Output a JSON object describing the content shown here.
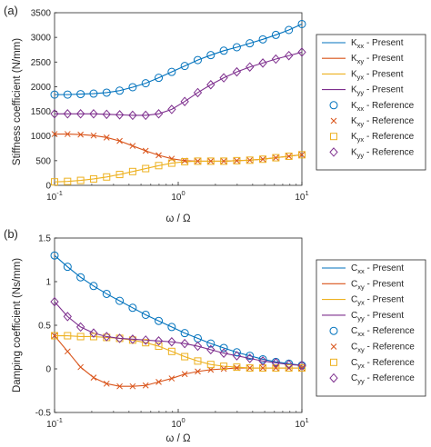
{
  "chart_data": [
    {
      "panel_label": "(a)",
      "type": "line",
      "xscale": "log",
      "xlim": [
        0.1,
        10
      ],
      "ylim": [
        0,
        3500
      ],
      "xlabel": "ω / Ω",
      "ylabel": "Stiffness coefficient (N/mm)",
      "yticks": [
        "0",
        "500",
        "1000",
        "1500",
        "2000",
        "2500",
        "3000",
        "3500"
      ],
      "xticks": [
        {
          "base": "10",
          "exp": "-1"
        },
        {
          "base": "10",
          "exp": "0"
        },
        {
          "base": "10",
          "exp": "1"
        }
      ],
      "legend_position": "right",
      "x": [
        0.1,
        0.1274,
        0.1624,
        0.2069,
        0.2637,
        0.336,
        0.4281,
        0.5456,
        0.6952,
        0.8859,
        1.1288,
        1.4384,
        1.833,
        2.3357,
        2.9764,
        3.7927,
        4.8329,
        6.1585,
        7.8476,
        10.0
      ],
      "series": [
        {
          "name": "Kxx",
          "sym": "K",
          "sub": "xx",
          "color": "#0072BD",
          "marker": "circle",
          "values": [
            1840,
            1840,
            1850,
            1860,
            1880,
            1920,
            1990,
            2070,
            2180,
            2300,
            2420,
            2540,
            2640,
            2730,
            2800,
            2880,
            2960,
            3050,
            3150,
            3270
          ]
        },
        {
          "name": "Kxy",
          "sym": "K",
          "sub": "xy",
          "color": "#D95319",
          "marker": "x",
          "values": [
            1040,
            1040,
            1030,
            1010,
            970,
            900,
            800,
            700,
            610,
            540,
            500,
            490,
            490,
            490,
            500,
            510,
            530,
            560,
            590,
            620
          ]
        },
        {
          "name": "Kyx",
          "sym": "K",
          "sub": "yx",
          "color": "#EDB120",
          "marker": "square",
          "values": [
            70,
            80,
            100,
            130,
            170,
            220,
            280,
            340,
            400,
            450,
            480,
            490,
            490,
            490,
            500,
            510,
            530,
            560,
            590,
            620
          ]
        },
        {
          "name": "Kyy",
          "sym": "K",
          "sub": "yy",
          "color": "#7E2F8E",
          "marker": "diamond",
          "values": [
            1450,
            1450,
            1450,
            1450,
            1440,
            1430,
            1420,
            1420,
            1450,
            1540,
            1700,
            1880,
            2040,
            2180,
            2300,
            2400,
            2480,
            2560,
            2630,
            2700
          ]
        }
      ],
      "legend_lines": [
        {
          "sym": "K",
          "sub": "xx",
          "text": " - Present",
          "color": "#0072BD"
        },
        {
          "sym": "K",
          "sub": "xy",
          "text": " - Present",
          "color": "#D95319"
        },
        {
          "sym": "K",
          "sub": "yx",
          "text": " - Present",
          "color": "#EDB120"
        },
        {
          "sym": "K",
          "sub": "yy",
          "text": " - Present",
          "color": "#7E2F8E"
        },
        {
          "sym": "K",
          "sub": "xx",
          "text": " - Reference",
          "color": "#0072BD",
          "marker": "circle"
        },
        {
          "sym": "K",
          "sub": "xy",
          "text": " - Reference",
          "color": "#D95319",
          "marker": "x"
        },
        {
          "sym": "K",
          "sub": "yx",
          "text": " - Reference",
          "color": "#EDB120",
          "marker": "square"
        },
        {
          "sym": "K",
          "sub": "yy",
          "text": " - Reference",
          "color": "#7E2F8E",
          "marker": "diamond"
        }
      ]
    },
    {
      "panel_label": "(b)",
      "type": "line",
      "xscale": "log",
      "xlim": [
        0.1,
        10
      ],
      "ylim": [
        -0.5,
        1.5
      ],
      "xlabel": "ω / Ω",
      "ylabel": "Damping coefficient (Ns/mm)",
      "yticks": [
        "-0.5",
        "0",
        "0.5",
        "1",
        "1.5"
      ],
      "xticks": [
        {
          "base": "10",
          "exp": "-1"
        },
        {
          "base": "10",
          "exp": "0"
        },
        {
          "base": "10",
          "exp": "1"
        }
      ],
      "legend_position": "right",
      "x": [
        0.1,
        0.1274,
        0.1624,
        0.2069,
        0.2637,
        0.336,
        0.4281,
        0.5456,
        0.6952,
        0.8859,
        1.1288,
        1.4384,
        1.833,
        2.3357,
        2.9764,
        3.7927,
        4.8329,
        6.1585,
        7.8476,
        10.0
      ],
      "series": [
        {
          "name": "Cxx",
          "sym": "C",
          "sub": "xx",
          "color": "#0072BD",
          "marker": "circle",
          "values": [
            1.3,
            1.17,
            1.05,
            0.95,
            0.86,
            0.78,
            0.7,
            0.62,
            0.55,
            0.48,
            0.41,
            0.35,
            0.29,
            0.24,
            0.19,
            0.15,
            0.11,
            0.08,
            0.06,
            0.04
          ]
        },
        {
          "name": "Cxy",
          "sym": "C",
          "sub": "xy",
          "color": "#D95319",
          "marker": "x",
          "values": [
            0.38,
            0.2,
            0.02,
            -0.1,
            -0.17,
            -0.2,
            -0.2,
            -0.19,
            -0.15,
            -0.11,
            -0.06,
            -0.03,
            -0.01,
            0.0,
            0.01,
            0.01,
            0.01,
            0.01,
            0.01,
            0.01
          ]
        },
        {
          "name": "Cyx",
          "sym": "C",
          "sub": "yx",
          "color": "#EDB120",
          "marker": "square",
          "values": [
            0.38,
            0.38,
            0.37,
            0.37,
            0.36,
            0.35,
            0.33,
            0.3,
            0.26,
            0.2,
            0.14,
            0.09,
            0.05,
            0.03,
            0.02,
            0.01,
            0.01,
            0.01,
            0.01,
            0.01
          ]
        },
        {
          "name": "Cyy",
          "sym": "C",
          "sub": "yy",
          "color": "#7E2F8E",
          "marker": "diamond",
          "values": [
            0.77,
            0.6,
            0.48,
            0.41,
            0.37,
            0.35,
            0.34,
            0.33,
            0.32,
            0.31,
            0.29,
            0.26,
            0.22,
            0.18,
            0.15,
            0.12,
            0.09,
            0.07,
            0.05,
            0.04
          ]
        }
      ],
      "legend_lines": [
        {
          "sym": "C",
          "sub": "xx",
          "text": " - Present",
          "color": "#0072BD"
        },
        {
          "sym": "C",
          "sub": "xy",
          "text": " - Present",
          "color": "#D95319"
        },
        {
          "sym": "C",
          "sub": "yx",
          "text": " - Present",
          "color": "#EDB120"
        },
        {
          "sym": "C",
          "sub": "yy",
          "text": " - Present",
          "color": "#7E2F8E"
        },
        {
          "sym": "C",
          "sub": "xx",
          "text": " - Reference",
          "color": "#0072BD",
          "marker": "circle"
        },
        {
          "sym": "C",
          "sub": "xy",
          "text": " - Reference",
          "color": "#D95319",
          "marker": "x"
        },
        {
          "sym": "C",
          "sub": "yx",
          "text": " - Reference",
          "color": "#EDB120",
          "marker": "square"
        },
        {
          "sym": "C",
          "sub": "yy",
          "text": " - Reference",
          "color": "#7E2F8E",
          "marker": "diamond"
        }
      ]
    }
  ]
}
